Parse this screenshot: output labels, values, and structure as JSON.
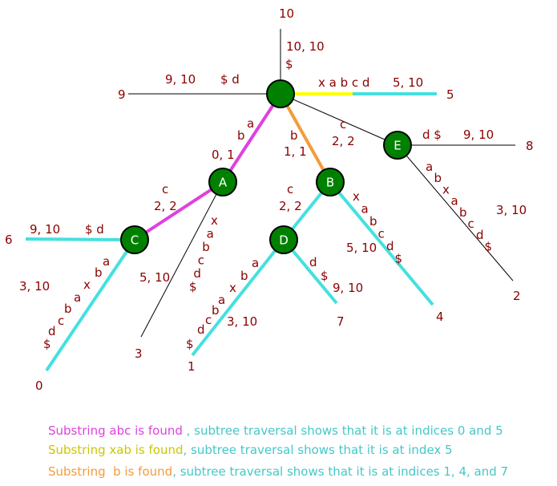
{
  "colors": {
    "plain": "#000000",
    "magenta": "#e040e0",
    "yellow": "#ffff00",
    "orange": "#f39c3c",
    "cyan": "#45e0e0",
    "node_fill": "#008000",
    "label": "#8b0000"
  },
  "nodes": [
    {
      "id": "root",
      "label": ""
    },
    {
      "id": "A",
      "label": "A"
    },
    {
      "id": "B",
      "label": "B"
    },
    {
      "id": "C",
      "label": "C"
    },
    {
      "id": "D",
      "label": "D"
    },
    {
      "id": "E",
      "label": "E"
    }
  ],
  "leaves": [
    "10",
    "9",
    "5",
    "8",
    "6",
    "0",
    "3",
    "1",
    "7",
    "4",
    "2"
  ],
  "edge_labels": {
    "root_10": {
      "range": "10, 10",
      "text": "$"
    },
    "root_9": {
      "range": "9, 10",
      "text": "$ d"
    },
    "root_5": {
      "range": "5, 10",
      "text": "x a b c d"
    },
    "root_A": {
      "range": "0, 1",
      "text": "b a"
    },
    "root_B": {
      "range": "1, 1",
      "text": "b"
    },
    "root_E": {
      "range": "2, 2",
      "text": "c"
    },
    "E_8": {
      "range": "9, 10",
      "text": "d $"
    },
    "E_2": {
      "range": "3, 10",
      "text": "a b x a b c d $"
    },
    "A_C": {
      "range": "2, 2",
      "text": "c"
    },
    "A_3": {
      "range": "5, 10",
      "text": "x a b c d $"
    },
    "C_6": {
      "range": "9, 10",
      "text": "$ d"
    },
    "C_0": {
      "range": "3, 10",
      "text": "a b x a b c d $"
    },
    "B_D": {
      "range": "2, 2",
      "text": "c"
    },
    "B_4": {
      "range": "5, 10",
      "text": "x a b c d $"
    },
    "D_1": {
      "range": "3, 10",
      "text": "a b x a b c d $"
    },
    "D_7": {
      "range": "9, 10",
      "text": "d $"
    }
  },
  "legend": [
    {
      "a": "Substring abc is found ",
      "b": ", subtree traversal shows that it is at indices 0 and 5"
    },
    {
      "a": "Substring xab is found",
      "b": ", subtree traversal shows that it is at index 5"
    },
    {
      "a": "Substring  b is found",
      "b": ", subtree traversal shows that it is at indices 1, 4, and 7"
    }
  ]
}
